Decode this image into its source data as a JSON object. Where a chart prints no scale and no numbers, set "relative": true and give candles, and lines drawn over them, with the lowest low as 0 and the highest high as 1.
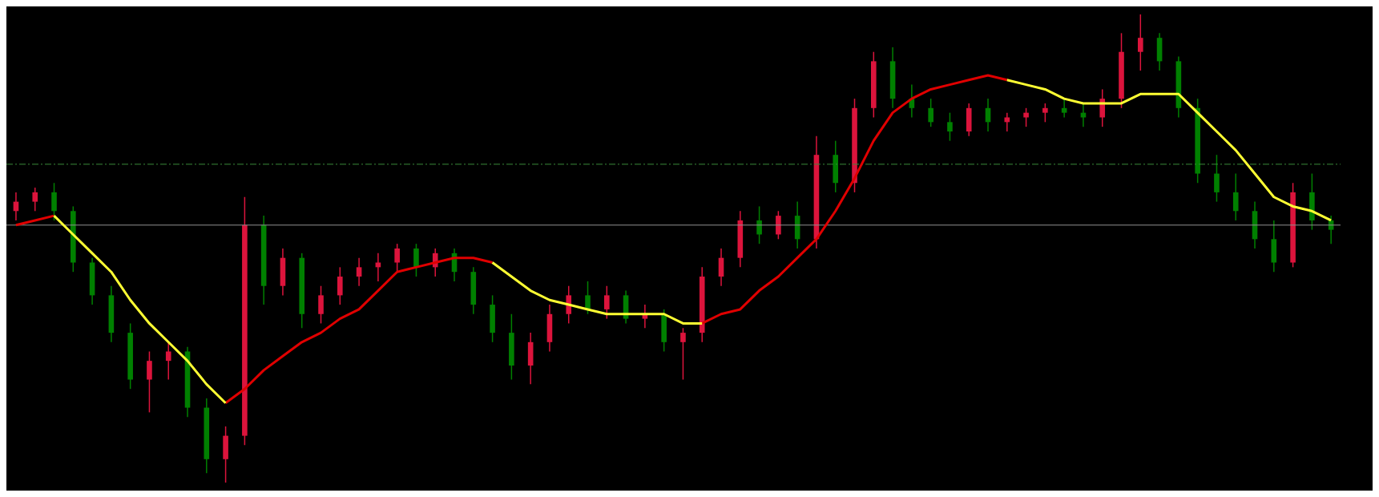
{
  "chart_data": {
    "type": "candlestick",
    "relative": true,
    "categories": [
      null,
      null,
      null,
      null,
      null,
      null,
      null,
      null,
      null,
      null,
      null,
      null,
      null,
      null,
      null,
      null,
      null,
      null,
      null,
      null,
      null,
      null,
      null,
      null,
      null,
      null,
      null,
      null,
      null,
      null,
      null,
      null,
      null,
      null,
      null,
      null,
      null,
      null,
      null,
      null,
      null,
      null,
      null,
      null,
      null,
      null,
      null,
      null,
      null,
      null,
      null,
      null,
      null,
      null,
      null,
      null,
      null,
      null,
      null,
      null,
      null,
      null,
      null,
      null,
      null,
      null,
      null,
      null,
      null,
      null
    ],
    "ohlc": [
      [
        0.58,
        0.62,
        0.56,
        0.6
      ],
      [
        0.6,
        0.63,
        0.58,
        0.62
      ],
      [
        0.62,
        0.64,
        0.56,
        0.58
      ],
      [
        0.58,
        0.59,
        0.45,
        0.47
      ],
      [
        0.47,
        0.48,
        0.38,
        0.4
      ],
      [
        0.4,
        0.42,
        0.3,
        0.32
      ],
      [
        0.32,
        0.34,
        0.2,
        0.22
      ],
      [
        0.22,
        0.28,
        0.15,
        0.26
      ],
      [
        0.26,
        0.3,
        0.22,
        0.28
      ],
      [
        0.28,
        0.29,
        0.14,
        0.16
      ],
      [
        0.16,
        0.18,
        0.02,
        0.05
      ],
      [
        0.05,
        0.12,
        0.0,
        0.1
      ],
      [
        0.1,
        0.61,
        0.08,
        0.55
      ],
      [
        0.55,
        0.57,
        0.38,
        0.42
      ],
      [
        0.42,
        0.5,
        0.4,
        0.48
      ],
      [
        0.48,
        0.49,
        0.33,
        0.36
      ],
      [
        0.36,
        0.42,
        0.34,
        0.4
      ],
      [
        0.4,
        0.46,
        0.38,
        0.44
      ],
      [
        0.44,
        0.48,
        0.42,
        0.46
      ],
      [
        0.46,
        0.49,
        0.43,
        0.47
      ],
      [
        0.47,
        0.51,
        0.45,
        0.5
      ],
      [
        0.5,
        0.51,
        0.44,
        0.46
      ],
      [
        0.46,
        0.5,
        0.44,
        0.49
      ],
      [
        0.49,
        0.5,
        0.43,
        0.45
      ],
      [
        0.45,
        0.46,
        0.36,
        0.38
      ],
      [
        0.38,
        0.4,
        0.3,
        0.32
      ],
      [
        0.32,
        0.36,
        0.22,
        0.25
      ],
      [
        0.25,
        0.32,
        0.21,
        0.3
      ],
      [
        0.3,
        0.38,
        0.28,
        0.36
      ],
      [
        0.36,
        0.42,
        0.34,
        0.4
      ],
      [
        0.4,
        0.43,
        0.36,
        0.37
      ],
      [
        0.37,
        0.42,
        0.35,
        0.4
      ],
      [
        0.4,
        0.41,
        0.34,
        0.35
      ],
      [
        0.35,
        0.38,
        0.33,
        0.36
      ],
      [
        0.36,
        0.37,
        0.28,
        0.3
      ],
      [
        0.3,
        0.33,
        0.22,
        0.32
      ],
      [
        0.32,
        0.46,
        0.3,
        0.44
      ],
      [
        0.44,
        0.5,
        0.42,
        0.48
      ],
      [
        0.48,
        0.58,
        0.46,
        0.56
      ],
      [
        0.56,
        0.59,
        0.51,
        0.53
      ],
      [
        0.53,
        0.58,
        0.52,
        0.57
      ],
      [
        0.57,
        0.6,
        0.5,
        0.52
      ],
      [
        0.52,
        0.74,
        0.5,
        0.7
      ],
      [
        0.7,
        0.73,
        0.62,
        0.64
      ],
      [
        0.64,
        0.82,
        0.62,
        0.8
      ],
      [
        0.8,
        0.92,
        0.78,
        0.9
      ],
      [
        0.9,
        0.93,
        0.8,
        0.82
      ],
      [
        0.82,
        0.85,
        0.78,
        0.8
      ],
      [
        0.8,
        0.82,
        0.76,
        0.77
      ],
      [
        0.77,
        0.79,
        0.73,
        0.75
      ],
      [
        0.75,
        0.81,
        0.74,
        0.8
      ],
      [
        0.8,
        0.82,
        0.75,
        0.77
      ],
      [
        0.77,
        0.79,
        0.75,
        0.78
      ],
      [
        0.78,
        0.8,
        0.76,
        0.79
      ],
      [
        0.79,
        0.81,
        0.77,
        0.8
      ],
      [
        0.8,
        0.82,
        0.78,
        0.79
      ],
      [
        0.79,
        0.81,
        0.76,
        0.78
      ],
      [
        0.78,
        0.84,
        0.76,
        0.82
      ],
      [
        0.82,
        0.96,
        0.8,
        0.92
      ],
      [
        0.92,
        1.0,
        0.88,
        0.95
      ],
      [
        0.95,
        0.96,
        0.88,
        0.9
      ],
      [
        0.9,
        0.91,
        0.78,
        0.8
      ],
      [
        0.8,
        0.82,
        0.64,
        0.66
      ],
      [
        0.66,
        0.7,
        0.6,
        0.62
      ],
      [
        0.62,
        0.66,
        0.56,
        0.58
      ],
      [
        0.58,
        0.6,
        0.5,
        0.52
      ],
      [
        0.52,
        0.56,
        0.45,
        0.47
      ],
      [
        0.47,
        0.64,
        0.46,
        0.62
      ],
      [
        0.62,
        0.66,
        0.54,
        0.56
      ],
      [
        0.56,
        0.57,
        0.51,
        0.54
      ]
    ],
    "colors": [
      "#dc143c",
      "#dc143c",
      "#008000",
      "#008000",
      "#008000",
      "#008000",
      "#008000",
      "#dc143c",
      "#dc143c",
      "#008000",
      "#008000",
      "#dc143c",
      "#dc143c",
      "#008000",
      "#dc143c",
      "#008000",
      "#dc143c",
      "#dc143c",
      "#dc143c",
      "#dc143c",
      "#dc143c",
      "#008000",
      "#dc143c",
      "#008000",
      "#008000",
      "#008000",
      "#008000",
      "#dc143c",
      "#dc143c",
      "#dc143c",
      "#008000",
      "#dc143c",
      "#008000",
      "#dc143c",
      "#008000",
      "#dc143c",
      "#dc143c",
      "#dc143c",
      "#dc143c",
      "#008000",
      "#dc143c",
      "#008000",
      "#dc143c",
      "#008000",
      "#dc143c",
      "#dc143c",
      "#008000",
      "#008000",
      "#008000",
      "#008000",
      "#dc143c",
      "#008000",
      "#dc143c",
      "#dc143c",
      "#dc143c",
      "#008000",
      "#008000",
      "#dc143c",
      "#dc143c",
      "#dc143c",
      "#008000",
      "#008000",
      "#008000",
      "#008000",
      "#008000",
      "#008000",
      "#008000",
      "#dc143c",
      "#008000",
      "#008000"
    ],
    "series": [
      {
        "type": "line",
        "color": "#e00000",
        "values": [
          0.55,
          0.56,
          0.57,
          null,
          null,
          null,
          null,
          null,
          null,
          null,
          null,
          0.17,
          0.2,
          0.24,
          0.27,
          0.3,
          0.32,
          0.35,
          0.37,
          0.41,
          0.45,
          0.46,
          0.47,
          0.48,
          0.48,
          0.47,
          null,
          null,
          null,
          null,
          null,
          null,
          null,
          null,
          null,
          null,
          0.34,
          0.36,
          0.37,
          0.41,
          0.44,
          0.48,
          0.52,
          0.58,
          0.65,
          0.73,
          0.79,
          0.82,
          0.84,
          0.85,
          0.86,
          0.87,
          0.86,
          null,
          null,
          null,
          null,
          null,
          null,
          null,
          null,
          null,
          null,
          null,
          null,
          null,
          null,
          null,
          null,
          null
        ]
      },
      {
        "type": "line",
        "color": "#ffff33",
        "values": [
          null,
          null,
          0.57,
          0.53,
          0.49,
          0.45,
          0.39,
          0.34,
          0.3,
          0.26,
          0.21,
          0.17,
          null,
          null,
          null,
          null,
          null,
          null,
          null,
          null,
          null,
          null,
          null,
          null,
          null,
          0.47,
          0.44,
          0.41,
          0.39,
          0.38,
          0.37,
          0.36,
          0.36,
          0.36,
          0.36,
          0.34,
          0.34,
          null,
          null,
          null,
          null,
          null,
          null,
          null,
          null,
          null,
          null,
          null,
          null,
          null,
          null,
          null,
          0.86,
          0.85,
          0.84,
          0.82,
          0.81,
          0.81,
          0.81,
          0.83,
          0.83,
          0.83,
          0.79,
          0.75,
          0.71,
          0.66,
          0.61,
          0.59,
          0.58,
          0.56
        ]
      }
    ],
    "ref_lines": [
      {
        "axis": "y",
        "value": 0.55,
        "color": "#909090",
        "line_style": "solid"
      },
      {
        "axis": "y",
        "value": 0.68,
        "color": "#3a8a3a",
        "line_style": "dashed"
      }
    ]
  }
}
